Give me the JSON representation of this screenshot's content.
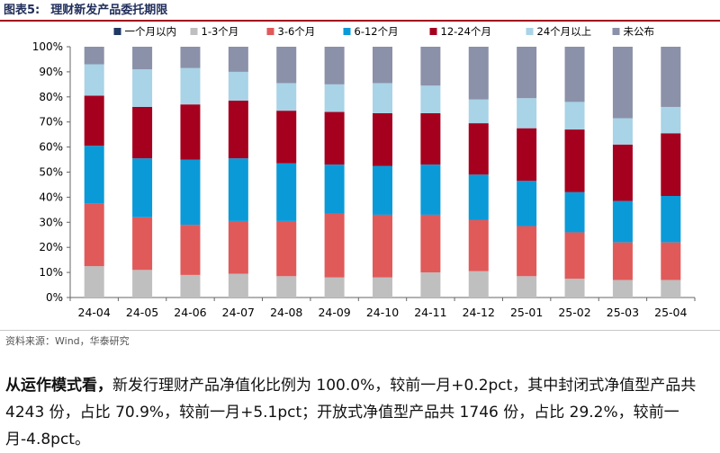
{
  "figure": {
    "number_label": "图表5:",
    "title": "理财新发产品委托期限"
  },
  "chart_data": {
    "type": "bar",
    "stacked": true,
    "percent": true,
    "categories": [
      "24-04",
      "24-05",
      "24-06",
      "24-07",
      "24-08",
      "24-09",
      "24-10",
      "24-11",
      "24-12",
      "25-01",
      "25-02",
      "25-03",
      "25-04"
    ],
    "series": [
      {
        "name": "一个月以内",
        "color": "#1f3864",
        "values": [
          0,
          0,
          0,
          0,
          0,
          0,
          0,
          0,
          0,
          0,
          0,
          0,
          0
        ]
      },
      {
        "name": "1-3个月",
        "color": "#bfbfbf",
        "values": [
          12.5,
          11,
          9,
          9.5,
          8.5,
          8,
          8,
          10,
          10.5,
          8.5,
          7.5,
          7,
          7
        ]
      },
      {
        "name": "3-6个月",
        "color": "#e05a5a",
        "values": [
          25,
          21,
          20,
          21,
          22,
          25.5,
          25,
          23,
          20.5,
          20,
          18.5,
          15,
          15
        ]
      },
      {
        "name": "6-12个月",
        "color": "#0a9ad8",
        "values": [
          23,
          23.5,
          26,
          25,
          23,
          19.5,
          19.5,
          20,
          18,
          18,
          16,
          16.5,
          18.5
        ]
      },
      {
        "name": "12-24个月",
        "color": "#a5001e",
        "values": [
          20,
          20.5,
          22,
          23,
          21,
          21,
          21,
          20.5,
          20.5,
          21,
          25,
          22.5,
          25
        ]
      },
      {
        "name": "24个月以上",
        "color": "#a9d3e6",
        "values": [
          12.5,
          15,
          14.5,
          11.5,
          11,
          11,
          12,
          11,
          9.5,
          12,
          11,
          10.5,
          10.5
        ]
      },
      {
        "name": "未公布",
        "color": "#8a91a8",
        "values": [
          7,
          9,
          8.5,
          10,
          14.5,
          15,
          14.5,
          15.5,
          21,
          20.5,
          22,
          28.5,
          24
        ]
      }
    ],
    "y_ticks": [
      "0%",
      "10%",
      "20%",
      "30%",
      "40%",
      "50%",
      "60%",
      "70%",
      "80%",
      "90%",
      "100%"
    ],
    "ylim": [
      0,
      100
    ],
    "legend_position": "top",
    "grid": false
  },
  "source_text": "资料来源：Wind，华泰研究",
  "paragraph": {
    "lead": "从运作模式看，",
    "body": "新发行理财产品净值化比例为 100.0%，较前一月+0.2pct，其中封闭式净值型产品共 4243 份，占比 70.9%，较前一月+5.1pct；开放式净值型产品共 1746 份，占比 29.2%，较前一月-4.8pct。"
  }
}
